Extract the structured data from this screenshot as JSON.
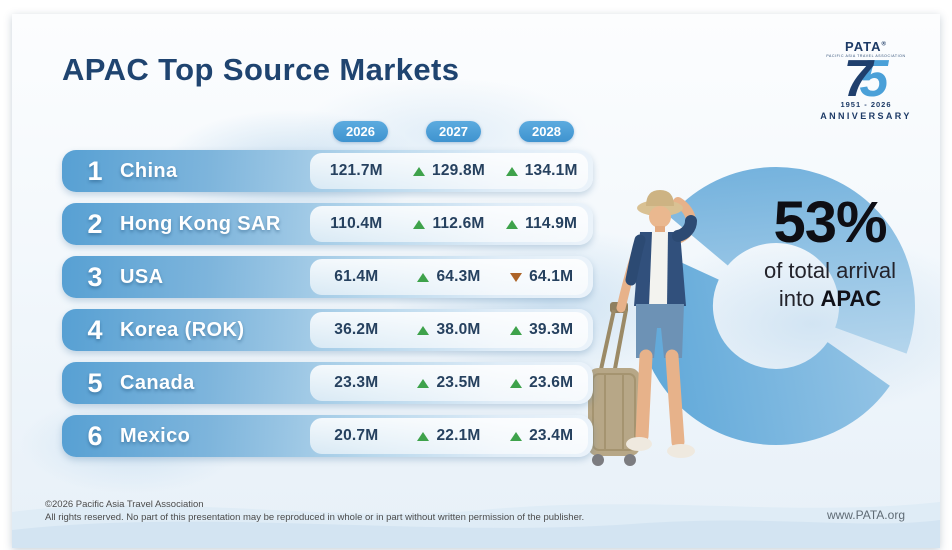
{
  "header": {
    "title": "APAC Top Source Markets"
  },
  "logo": {
    "brand": "PATA",
    "reg": "®",
    "tagline": "PACIFIC ASIA TRAVEL ASSOCIATION",
    "digit_left": "7",
    "digit_right": "5",
    "years_range": "1951 - 2026",
    "anniversary": "ANNIVERSARY"
  },
  "years": [
    "2026",
    "2027",
    "2028"
  ],
  "callout": {
    "percent": "53%",
    "line1": "of total arrival",
    "line2_prefix": "into ",
    "line2_bold": "APAC"
  },
  "footer": {
    "copyright": "©2026 Pacific Asia Travel Association",
    "rights": "All rights reserved. No part of this presentation may be reproduced in whole or in part without written permission of the publisher.",
    "website": "www.PATA.org"
  },
  "colors": {
    "navy": "#1f4470",
    "accent_blue": "#4d9fd9",
    "up_green": "#3ea24b",
    "down_orange": "#ad6327"
  },
  "chart_data": {
    "type": "table",
    "title": "APAC Top Source Markets",
    "categories": [
      "2026",
      "2027",
      "2028"
    ],
    "unit": "millions of arrivals",
    "rows": [
      {
        "rank": 1,
        "market": "China",
        "values": [
          "121.7M",
          "129.8M",
          "134.1M"
        ],
        "numeric": [
          121.7,
          129.8,
          134.1
        ],
        "trends": [
          null,
          "up",
          "up"
        ]
      },
      {
        "rank": 2,
        "market": "Hong Kong SAR",
        "values": [
          "110.4M",
          "112.6M",
          "114.9M"
        ],
        "numeric": [
          110.4,
          112.6,
          114.9
        ],
        "trends": [
          null,
          "up",
          "up"
        ]
      },
      {
        "rank": 3,
        "market": "USA",
        "values": [
          "61.4M",
          "64.3M",
          "64.1M"
        ],
        "numeric": [
          61.4,
          64.3,
          64.1
        ],
        "trends": [
          null,
          "up",
          "down"
        ]
      },
      {
        "rank": 4,
        "market": "Korea (ROK)",
        "values": [
          "36.2M",
          "38.0M",
          "39.3M"
        ],
        "numeric": [
          36.2,
          38.0,
          39.3
        ],
        "trends": [
          null,
          "up",
          "up"
        ]
      },
      {
        "rank": 5,
        "market": "Canada",
        "values": [
          "23.3M",
          "23.5M",
          "23.6M"
        ],
        "numeric": [
          23.3,
          23.5,
          23.6
        ],
        "trends": [
          null,
          "up",
          "up"
        ]
      },
      {
        "rank": 6,
        "market": "Mexico",
        "values": [
          "20.7M",
          "22.1M",
          "23.4M"
        ],
        "numeric": [
          20.7,
          22.1,
          23.4
        ],
        "trends": [
          null,
          "up",
          "up"
        ]
      }
    ],
    "annotation": "53% of total arrival into APAC",
    "legend_position": "none",
    "grid": false
  }
}
